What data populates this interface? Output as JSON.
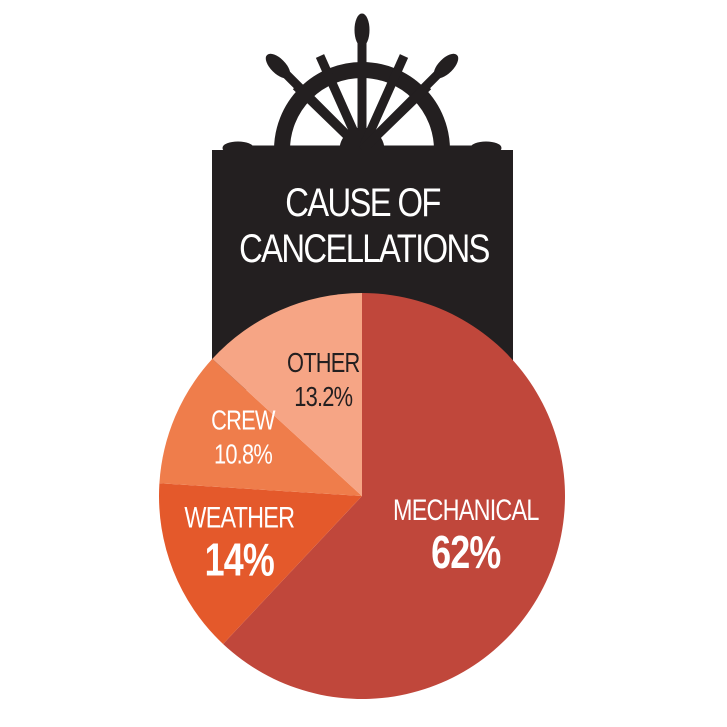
{
  "chart_data": {
    "type": "pie",
    "title": "CAUSE OF CANCELLATIONS",
    "categories": [
      "MECHANICAL",
      "WEATHER",
      "CREW",
      "OTHER"
    ],
    "values": [
      62,
      14,
      10.8,
      13.2
    ],
    "value_labels": [
      "62%",
      "14%",
      "10.8%",
      "13.2%"
    ],
    "colors": [
      "#c0473b",
      "#e4592b",
      "#ef7d4b",
      "#f6a585"
    ]
  }
}
